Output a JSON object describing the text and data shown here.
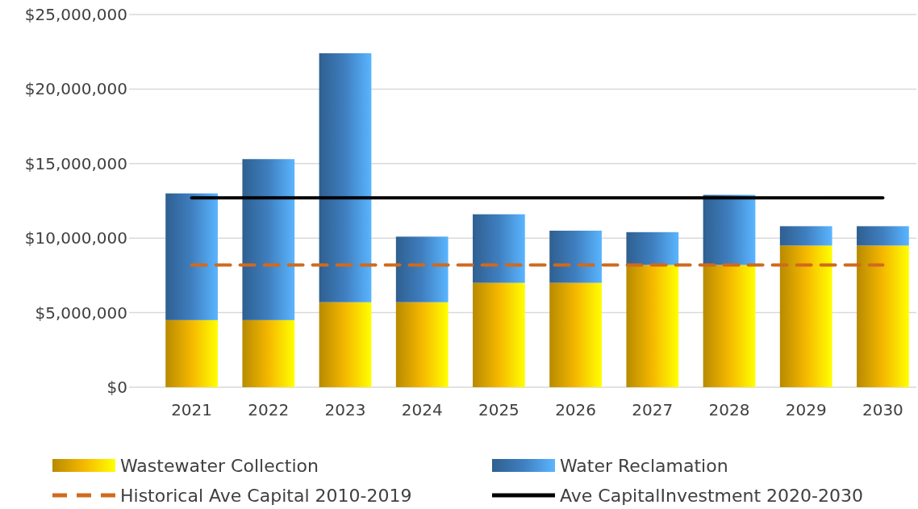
{
  "chart_data": {
    "type": "bar",
    "stacked": true,
    "categories": [
      "2021",
      "2022",
      "2023",
      "2024",
      "2025",
      "2026",
      "2027",
      "2028",
      "2029",
      "2030"
    ],
    "series": [
      {
        "name": "Wastewater Collection",
        "color": "#f5b800",
        "values": [
          4500000,
          4500000,
          5700000,
          5700000,
          7000000,
          7000000,
          8200000,
          8200000,
          9500000,
          9500000
        ]
      },
      {
        "name": "Water Reclamation",
        "color": "#3f7fc0",
        "values": [
          8500000,
          10800000,
          16700000,
          4400000,
          4600000,
          3500000,
          2200000,
          4700000,
          1300000,
          1300000
        ]
      },
      {
        "name": "Historical Ave Capital 2010-2019",
        "type": "line",
        "color": "#d06a1e",
        "line_style": "dashed",
        "values": [
          8200000,
          8200000,
          8200000,
          8200000,
          8200000,
          8200000,
          8200000,
          8200000,
          8200000,
          8200000
        ]
      },
      {
        "name": "Ave CapitalInvestment 2020-2030",
        "type": "line",
        "color": "#000000",
        "line_style": "solid",
        "values": [
          12700000,
          12700000,
          12700000,
          12700000,
          12700000,
          12700000,
          12700000,
          12700000,
          12700000,
          12700000
        ]
      }
    ],
    "ylim": [
      0,
      25000000
    ],
    "yticks": [
      {
        "value": 0,
        "label": "$0"
      },
      {
        "value": 5000000,
        "label": "$5,000,000"
      },
      {
        "value": 10000000,
        "label": "$10,000,000"
      },
      {
        "value": 15000000,
        "label": "$15,000,000"
      },
      {
        "value": 20000000,
        "label": "$20,000,000"
      },
      {
        "value": 25000000,
        "label": "$25,000,000"
      }
    ],
    "grid": "y",
    "legend": "bottom"
  }
}
